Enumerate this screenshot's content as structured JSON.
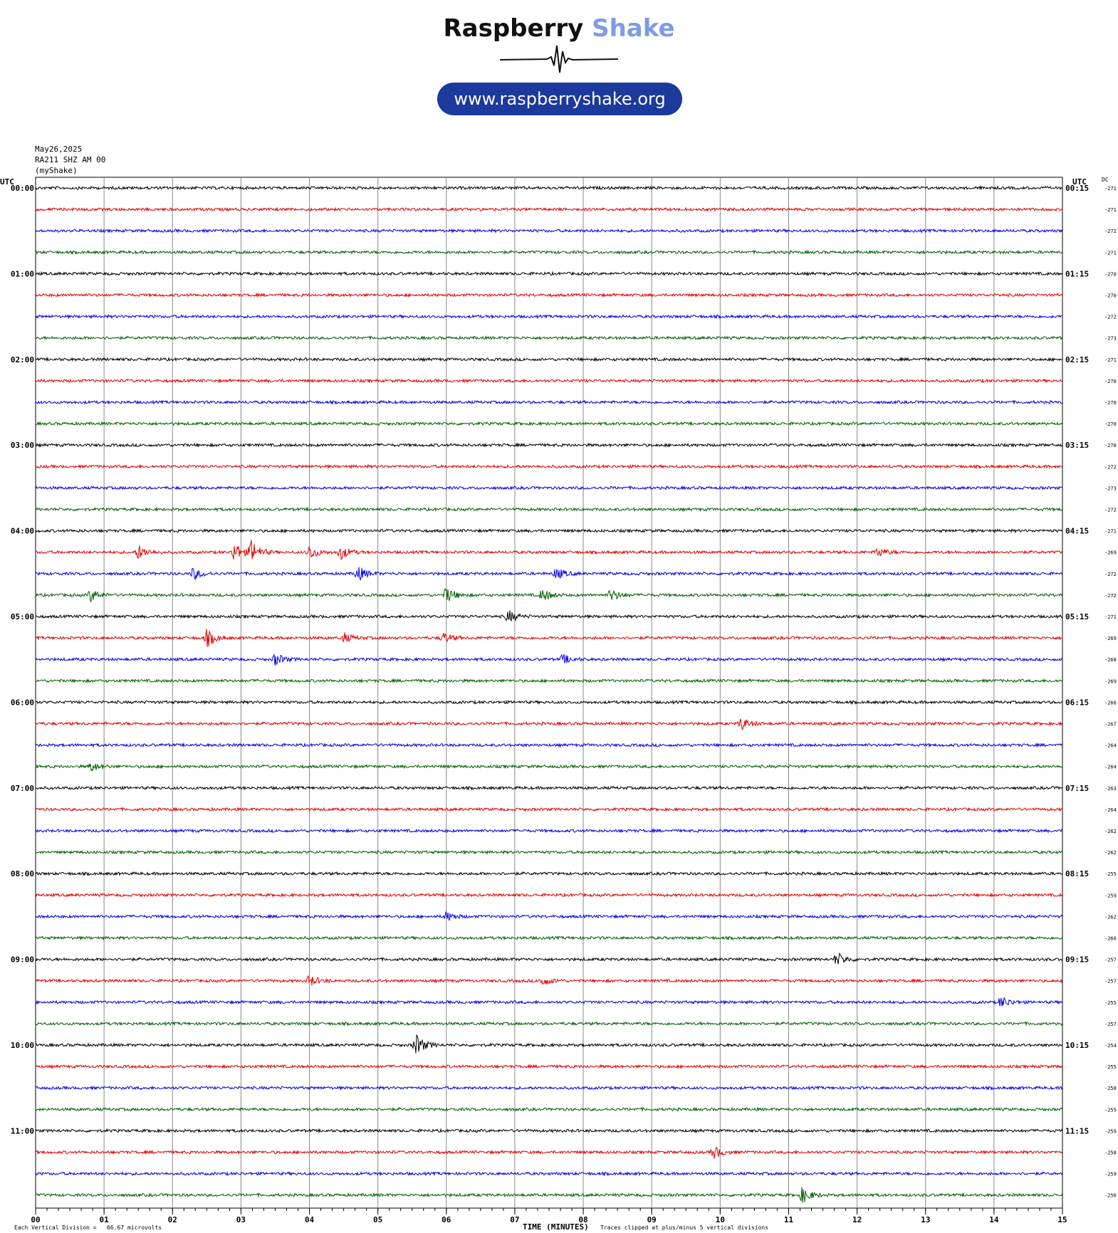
{
  "logo": {
    "brand_part1": "Raspberry",
    "brand_part2": "Shake",
    "url": "www.raspberryshake.org"
  },
  "header": {
    "date": "May26,2025",
    "station": "RA211 SHZ AM 00",
    "owner": "(myShake)"
  },
  "labels": {
    "left_utc": "UTC",
    "right_utc": "UTC",
    "dc": "DC",
    "x_axis": "TIME (MINUTES)",
    "scale_note": "Each Vertical Division =   66.67 microvolts",
    "clip_note": "Traces clipped at plus/minus 5 vertical divisions"
  },
  "colors": {
    "trace_cycle": [
      "#000000",
      "#e00000",
      "#0000e0",
      "#006000"
    ],
    "logo_shake": "#7d9be6",
    "url_pill": "#1b3a9c"
  },
  "chart_data": {
    "type": "line",
    "title": "",
    "xlabel": "TIME (MINUTES)",
    "ylabel": "",
    "x_ticks": [
      "00",
      "01",
      "02",
      "03",
      "04",
      "05",
      "06",
      "07",
      "08",
      "09",
      "10",
      "11",
      "12",
      "13",
      "14",
      "15"
    ],
    "xlim": [
      0,
      15
    ],
    "grid": true,
    "left_time_labels": [
      "00:00",
      "01:00",
      "02:00",
      "03:00",
      "04:00",
      "05:00",
      "06:00",
      "07:00",
      "08:00",
      "09:00",
      "10:00",
      "11:00"
    ],
    "right_time_labels": [
      "00:15",
      "01:15",
      "02:15",
      "03:15",
      "04:15",
      "05:15",
      "06:15",
      "07:15",
      "08:15",
      "09:15",
      "10:15",
      "11:15"
    ],
    "dc_offsets": [
      -271,
      -271,
      -272,
      -271,
      -270,
      -270,
      -272,
      -273,
      -271,
      -270,
      -270,
      -270,
      -270,
      -272,
      -273,
      -272,
      -271,
      -269,
      -272,
      -272,
      -271,
      -269,
      -268,
      -269,
      -266,
      -267,
      -264,
      -264,
      -263,
      -264,
      -262,
      -262,
      -255,
      -259,
      -262,
      -260,
      -257,
      -257,
      -255,
      -257,
      -254,
      -255,
      -258,
      -255,
      -259,
      -258,
      -259,
      -256
    ],
    "events": [
      {
        "trace": 17,
        "minute": 1.5,
        "amplitude": 1.8
      },
      {
        "trace": 17,
        "minute": 2.9,
        "amplitude": 2.5
      },
      {
        "trace": 17,
        "minute": 3.15,
        "amplitude": 2.8
      },
      {
        "trace": 17,
        "minute": 4.0,
        "amplitude": 1.8
      },
      {
        "trace": 17,
        "minute": 4.45,
        "amplitude": 1.8
      },
      {
        "trace": 17,
        "minute": 12.3,
        "amplitude": 1.2
      },
      {
        "trace": 18,
        "minute": 2.3,
        "amplitude": 1.5
      },
      {
        "trace": 18,
        "minute": 4.7,
        "amplitude": 2.0
      },
      {
        "trace": 18,
        "minute": 7.6,
        "amplitude": 1.5
      },
      {
        "trace": 19,
        "minute": 0.8,
        "amplitude": 1.6
      },
      {
        "trace": 19,
        "minute": 6.0,
        "amplitude": 2.0
      },
      {
        "trace": 19,
        "minute": 7.4,
        "amplitude": 1.6
      },
      {
        "trace": 19,
        "minute": 8.4,
        "amplitude": 1.6
      },
      {
        "trace": 20,
        "minute": 6.9,
        "amplitude": 1.6
      },
      {
        "trace": 21,
        "minute": 2.5,
        "amplitude": 2.2
      },
      {
        "trace": 21,
        "minute": 4.5,
        "amplitude": 1.2
      },
      {
        "trace": 21,
        "minute": 5.95,
        "amplitude": 1.3
      },
      {
        "trace": 22,
        "minute": 3.5,
        "amplitude": 1.6
      },
      {
        "trace": 22,
        "minute": 7.7,
        "amplitude": 1.2
      },
      {
        "trace": 25,
        "minute": 10.3,
        "amplitude": 1.6
      },
      {
        "trace": 27,
        "minute": 0.8,
        "amplitude": 1.2
      },
      {
        "trace": 34,
        "minute": 6.0,
        "amplitude": 1.2
      },
      {
        "trace": 36,
        "minute": 11.7,
        "amplitude": 1.8
      },
      {
        "trace": 37,
        "minute": 4.0,
        "amplitude": 1.4
      },
      {
        "trace": 37,
        "minute": 7.4,
        "amplitude": 1.2
      },
      {
        "trace": 38,
        "minute": 14.1,
        "amplitude": 1.5
      },
      {
        "trace": 40,
        "minute": 5.55,
        "amplitude": 2.8
      },
      {
        "trace": 45,
        "minute": 9.9,
        "amplitude": 1.6
      },
      {
        "trace": 47,
        "minute": 11.2,
        "amplitude": 2.0
      }
    ]
  }
}
